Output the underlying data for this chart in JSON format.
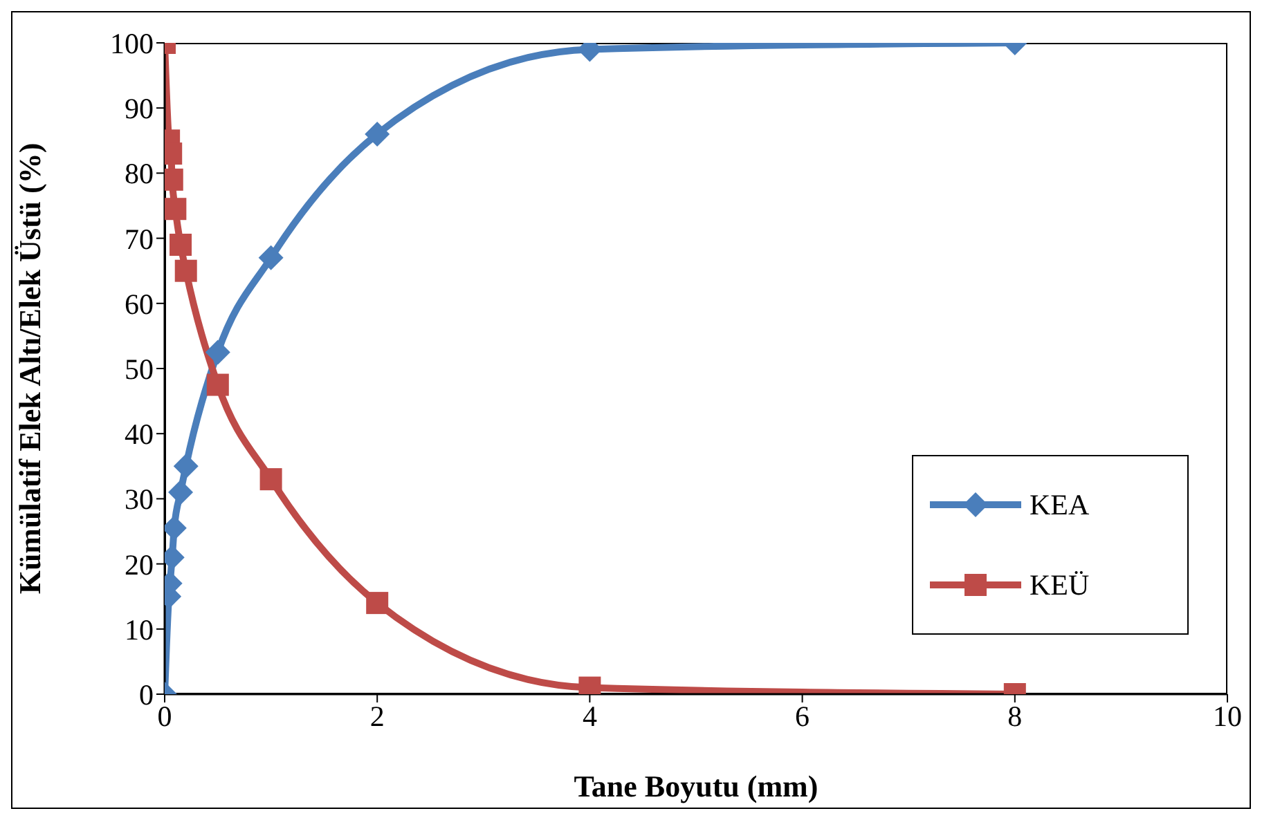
{
  "chart_data": {
    "type": "line",
    "xlabel": "Tane Boyutu (mm)",
    "ylabel": "Kümülatif Elek Altı/Elek Üstü (%)",
    "xlim": [
      0,
      10
    ],
    "xticks": [
      0,
      2,
      4,
      6,
      8,
      10
    ],
    "ylim": [
      0,
      100
    ],
    "yticks": [
      0,
      10,
      20,
      30,
      40,
      50,
      60,
      70,
      80,
      90,
      100
    ],
    "grid": false,
    "legend": "right",
    "line_style": "solid",
    "series": [
      {
        "name": "KEA",
        "color": "#4a7ebb",
        "marker": "diamond",
        "x": [
          0,
          0.04,
          0.05,
          0.07,
          0.09,
          0.15,
          0.2,
          0.5,
          1,
          2,
          4,
          8
        ],
        "values": [
          0,
          15,
          17,
          21,
          25.5,
          31,
          35,
          52.5,
          67,
          86,
          99,
          100
        ]
      },
      {
        "name": "KEÜ",
        "color": "#be4b48",
        "marker": "square",
        "x": [
          0,
          0.04,
          0.06,
          0.07,
          0.1,
          0.15,
          0.2,
          0.5,
          1,
          2,
          4,
          8
        ],
        "values": [
          100,
          85,
          83,
          79,
          74.5,
          69,
          65,
          47.5,
          33,
          14,
          1,
          0
        ]
      }
    ]
  }
}
